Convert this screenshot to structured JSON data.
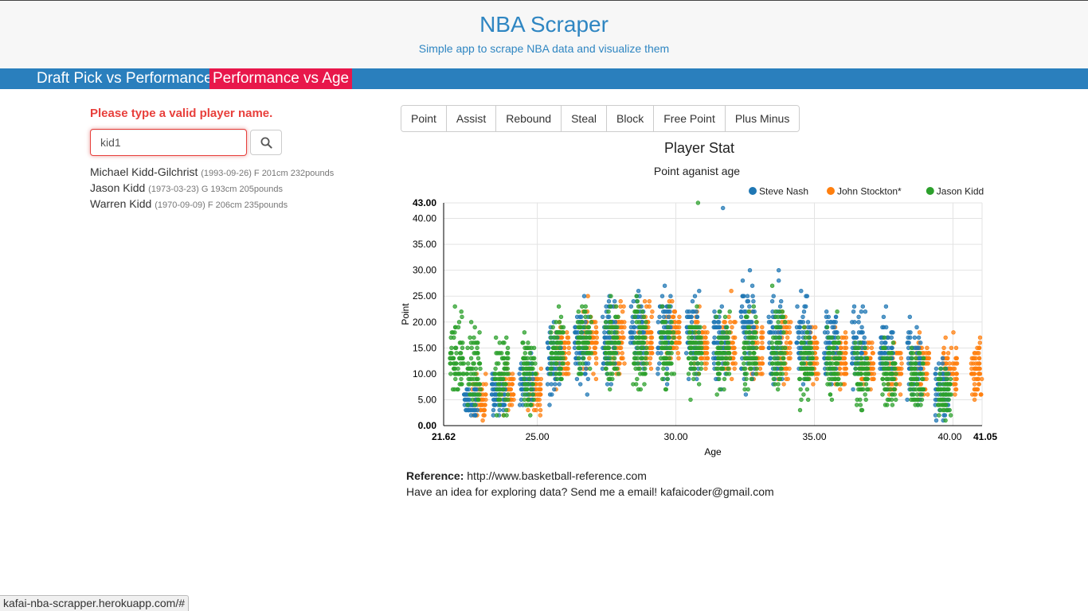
{
  "header": {
    "title": "NBA Scraper",
    "subtitle": "Simple app to scrape NBA data and visualize them"
  },
  "tabs": [
    {
      "label": "Draft Pick vs Performance",
      "active": false
    },
    {
      "label": "Performance vs Age",
      "active": true
    }
  ],
  "search": {
    "error": "Please type a valid player name.",
    "value": "kid1",
    "button_icon": "search-icon"
  },
  "results": [
    {
      "name": "Michael Kidd-Gilchrist",
      "meta": "(1993-09-26) F 201cm 232pounds"
    },
    {
      "name": "Jason Kidd",
      "meta": "(1973-03-23) G 193cm 205pounds"
    },
    {
      "name": "Warren Kidd",
      "meta": "(1970-09-09) F 206cm 235pounds"
    }
  ],
  "stat_buttons": [
    "Point",
    "Assist",
    "Rebound",
    "Steal",
    "Block",
    "Free Point",
    "Plus Minus"
  ],
  "colors": {
    "accent": "#2f86c2",
    "nav": "#2a7fbd",
    "active_tab": "#e8174b",
    "error": "#e8403c",
    "steve_nash": "#1f77b4",
    "john_stockton": "#ff7f0e",
    "jason_kidd": "#2ca02c"
  },
  "chart_data": {
    "type": "scatter",
    "title": "Player Stat",
    "subtitle": "Point aganist age",
    "xlabel": "Age",
    "ylabel": "Point",
    "xlim": [
      21.62,
      41.05
    ],
    "ylim": [
      0,
      43
    ],
    "x_ticks": [
      "21.62",
      "25.00",
      "30.00",
      "35.00",
      "40.00",
      "41.05"
    ],
    "y_ticks": [
      "0.00",
      "5.00",
      "10.00",
      "15.00",
      "20.00",
      "25.00",
      "30.00",
      "35.00",
      "40.00",
      "43.00"
    ],
    "grid": true,
    "legend_position": "top-right",
    "series": [
      {
        "name": "Steve Nash",
        "color": "#1f77b4",
        "ages": [
          22.6,
          23.6,
          24.6,
          25.6,
          26.6,
          27.6,
          28.6,
          29.6,
          30.6,
          31.6,
          32.6,
          33.6,
          34.6,
          35.6,
          36.6,
          37.6,
          38.6,
          39.6
        ],
        "means": [
          5,
          6,
          8,
          12,
          15,
          17,
          18,
          18,
          17,
          16,
          18,
          17,
          17,
          16,
          15,
          14,
          12,
          7
        ],
        "spread": [
          3,
          4,
          5,
          6,
          7,
          8,
          8,
          8,
          8,
          8,
          9,
          9,
          8,
          8,
          7,
          7,
          7,
          6
        ],
        "peak": 42
      },
      {
        "name": "John Stockton*",
        "color": "#ff7f0e",
        "ages": [
          22.9,
          23.9,
          24.9,
          25.9,
          26.9,
          27.9,
          28.9,
          29.9,
          30.9,
          31.9,
          32.9,
          33.9,
          34.9,
          35.9,
          36.9,
          37.9,
          38.9,
          39.9,
          40.9
        ],
        "means": [
          5,
          7,
          7,
          14,
          17,
          17,
          17,
          17,
          16,
          15,
          15,
          15,
          14,
          13,
          12,
          11,
          11,
          11,
          11
        ],
        "spread": [
          4,
          4,
          4,
          6,
          6,
          7,
          6,
          6,
          6,
          5,
          6,
          6,
          6,
          6,
          5,
          5,
          5,
          5,
          5
        ],
        "peak": 26
      },
      {
        "name": "Jason Kidd",
        "color": "#2ca02c",
        "ages": [
          22.1,
          22.7,
          23.7,
          24.7,
          25.7,
          26.7,
          27.7,
          28.7,
          29.7,
          30.7,
          31.7,
          32.7,
          33.7,
          34.7,
          35.7,
          36.7,
          37.7,
          38.7,
          39.7
        ],
        "means": [
          13,
          11,
          10,
          11,
          15,
          16,
          16,
          15,
          15,
          15,
          14,
          15,
          15,
          12,
          11,
          10,
          10,
          9,
          6
        ],
        "spread": [
          7,
          8,
          7,
          7,
          7,
          7,
          8,
          8,
          8,
          7,
          7,
          7,
          8,
          7,
          7,
          6,
          6,
          6,
          5
        ],
        "peak": 43
      }
    ]
  },
  "reference": {
    "label": "Reference:",
    "url": "http://www.basketball-reference.com",
    "contact": "Have an idea for exploring data? Send me a email! kafaicoder@gmail.com"
  },
  "status_bar": "kafai-nba-scrapper.herokuapp.com/#"
}
